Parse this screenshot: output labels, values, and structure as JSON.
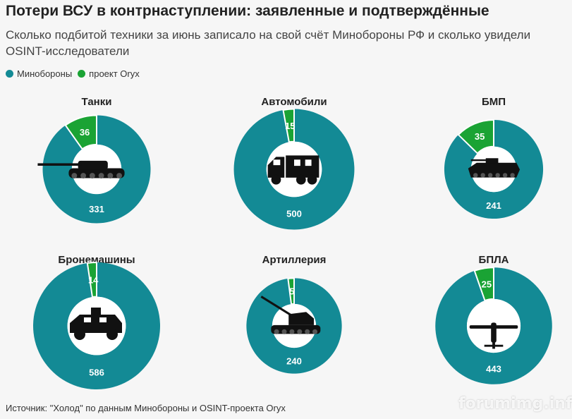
{
  "header": {
    "title": "Потери ВСУ в контрнаступлении: заявленные и подтверждённые",
    "subtitle": "Сколько подбитой техники за июнь записало на свой счёт Минобороны РФ и сколько увидели OSINT-исследователи"
  },
  "legend": [
    {
      "label": "Минобороны",
      "color": "#138a95"
    },
    {
      "label": "проект Oryx",
      "color": "#1aa334"
    }
  ],
  "colors": {
    "mod": "#138a95",
    "oryx": "#1aa334",
    "center": "#ffffff",
    "icon": "#111111"
  },
  "chart_data": [
    {
      "type": "pie",
      "title": "Танки",
      "series": [
        {
          "name": "Минобороны",
          "value": 331
        },
        {
          "name": "проект Oryx",
          "value": 36
        }
      ],
      "icon": "tank-icon"
    },
    {
      "type": "pie",
      "title": "Автомобили",
      "series": [
        {
          "name": "Минобороны",
          "value": 500
        },
        {
          "name": "проект Oryx",
          "value": 15
        }
      ],
      "icon": "truck-icon"
    },
    {
      "type": "pie",
      "title": "БМП",
      "series": [
        {
          "name": "Минобороны",
          "value": 241
        },
        {
          "name": "проект Oryx",
          "value": 35
        }
      ],
      "icon": "ifv-icon"
    },
    {
      "type": "pie",
      "title": "Бронемашины",
      "series": [
        {
          "name": "Минобороны",
          "value": 586
        },
        {
          "name": "проект Oryx",
          "value": 14
        }
      ],
      "icon": "armored-car-icon"
    },
    {
      "type": "pie",
      "title": "Артиллерия",
      "series": [
        {
          "name": "Минобороны",
          "value": 240
        },
        {
          "name": "проект Oryx",
          "value": 5
        }
      ],
      "icon": "artillery-icon"
    },
    {
      "type": "pie",
      "title": "БПЛА",
      "series": [
        {
          "name": "Минобороны",
          "value": 443
        },
        {
          "name": "проект Oryx",
          "value": 25
        }
      ],
      "icon": "drone-icon"
    }
  ],
  "footer": {
    "source": "Источник: \"Холод\" по данным Минобороны и OSINT-проекта Oryx",
    "watermark": "forumimg.info"
  }
}
